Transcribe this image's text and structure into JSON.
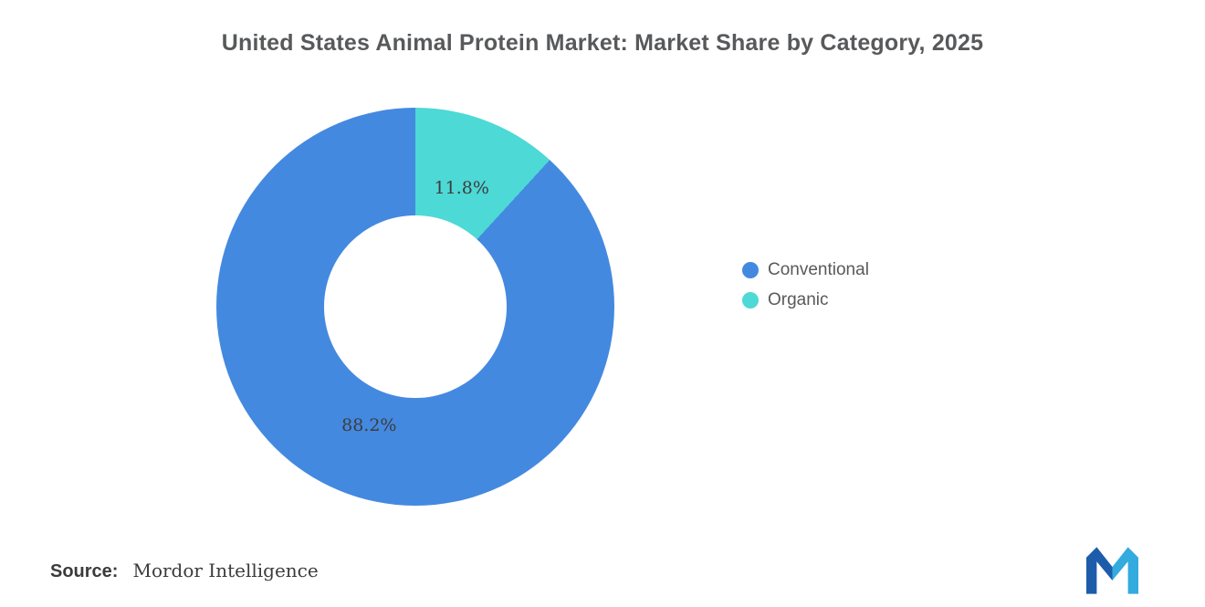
{
  "title": "United States Animal Protein Market: Market Share by Category, 2025",
  "source": {
    "label": "Source:",
    "value": "Mordor Intelligence"
  },
  "legend": {
    "position": "right",
    "items": [
      {
        "label": "Conventional",
        "color": "#4489e0"
      },
      {
        "label": "Organic",
        "color": "#4dd9d6"
      }
    ]
  },
  "logo": {
    "name": "mordor-intelligence-logo",
    "color_left": "#1d5cab",
    "color_right": "#33abdf"
  },
  "chart_data": {
    "type": "pie",
    "subtype": "donut",
    "title": "United States Animal Protein Market: Market Share by Category, 2025",
    "start_angle_deg": 0,
    "direction": "clockwise",
    "inner_radius_ratio": 0.46,
    "legend_position": "right",
    "slices": [
      {
        "label": "Organic",
        "value": 11.8,
        "data_label": "11.8%",
        "color": "#4dd9d6"
      },
      {
        "label": "Conventional",
        "value": 88.2,
        "data_label": "88.2%",
        "color": "#4489e0"
      }
    ]
  }
}
